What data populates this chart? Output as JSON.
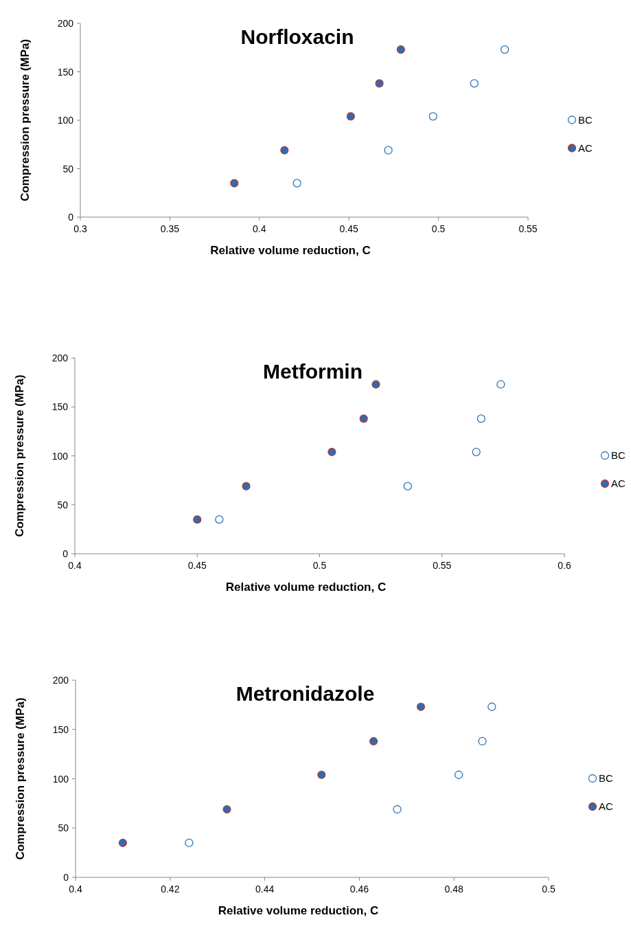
{
  "chart_data": [
    {
      "type": "scatter",
      "title": "Norfloxacin",
      "xlabel": "Relative volume reduction, C",
      "ylabel": "Compression pressure (MPa)",
      "xlim": [
        0.3,
        0.55
      ],
      "xticks": [
        0.3,
        0.35,
        0.4,
        0.45,
        0.5,
        0.55
      ],
      "ylim": [
        0,
        200
      ],
      "yticks": [
        0,
        50,
        100,
        150,
        200
      ],
      "grid": false,
      "legend": "right",
      "marker": "circle",
      "series": [
        {
          "name": "BC",
          "color": "#2e75b6",
          "x": [
            0.421,
            0.472,
            0.497,
            0.52,
            0.537
          ],
          "values": [
            35,
            69,
            104,
            138,
            173
          ]
        },
        {
          "name": "AC",
          "color": "#2e6bb0",
          "x": [
            0.386,
            0.414,
            0.451,
            0.467,
            0.479
          ],
          "values": [
            35,
            69,
            104,
            138,
            173
          ]
        }
      ]
    },
    {
      "type": "scatter",
      "title": "Metformin",
      "xlabel": "Relative volume reduction, C",
      "ylabel": "Compression pressure (MPa)",
      "xlim": [
        0.4,
        0.6
      ],
      "xticks": [
        0.4,
        0.45,
        0.5,
        0.55,
        0.6
      ],
      "ylim": [
        0,
        200
      ],
      "yticks": [
        0,
        50,
        100,
        150,
        200
      ],
      "grid": false,
      "legend": "right",
      "marker": "circle",
      "series": [
        {
          "name": "BC",
          "color": "#2e75b6",
          "x": [
            0.459,
            0.536,
            0.564,
            0.566,
            0.574
          ],
          "values": [
            35,
            69,
            104,
            138,
            173
          ]
        },
        {
          "name": "AC",
          "color": "#2e6bb0",
          "x": [
            0.45,
            0.47,
            0.505,
            0.518,
            0.523
          ],
          "values": [
            35,
            69,
            104,
            138,
            173
          ]
        }
      ]
    },
    {
      "type": "scatter",
      "title": "Metronidazole",
      "xlabel": "Relative volume reduction, C",
      "ylabel": "Compression pressure (MPa)",
      "xlim": [
        0.4,
        0.5
      ],
      "xticks": [
        0.4,
        0.42,
        0.44,
        0.46,
        0.48,
        0.5
      ],
      "ylim": [
        0,
        200
      ],
      "yticks": [
        0,
        50,
        100,
        150,
        200
      ],
      "grid": false,
      "legend": "right",
      "marker": "circle",
      "series": [
        {
          "name": "BC",
          "color": "#2e75b6",
          "x": [
            0.424,
            0.468,
            0.481,
            0.486,
            0.488
          ],
          "values": [
            35,
            69,
            104,
            138,
            173
          ]
        },
        {
          "name": "AC",
          "color": "#2e6bb0",
          "x": [
            0.41,
            0.432,
            0.452,
            0.463,
            0.473
          ],
          "values": [
            35,
            69,
            104,
            138,
            173
          ]
        }
      ]
    }
  ]
}
